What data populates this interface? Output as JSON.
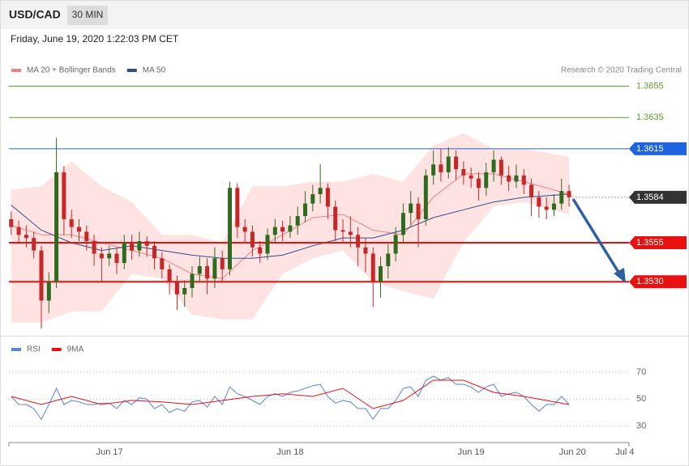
{
  "header": {
    "symbol": "USD/CAD",
    "interval": "30 MIN",
    "datetime": "Friday, June 19, 2020 1:22:03 PM CET"
  },
  "chart_data": [
    {
      "type": "candlestick",
      "note": "Research © 2020 Trading Central",
      "xlim": [
        -0.6,
        163.9
      ],
      "ylim": [
        1.3495,
        1.3662
      ],
      "up_color": "#2e6b1f",
      "down_color": "#c62828",
      "candles": {
        "x": [
          0,
          2,
          4,
          6,
          8,
          10,
          12,
          14,
          16,
          18,
          20,
          22,
          24,
          26,
          28,
          30,
          32,
          34,
          36,
          38,
          40,
          42,
          44,
          46,
          48,
          50,
          52,
          54,
          56,
          58,
          60,
          62,
          64,
          66,
          68,
          70,
          72,
          74,
          76,
          78,
          80,
          82,
          84,
          86,
          88,
          90,
          92,
          94,
          96,
          98,
          100,
          102,
          104,
          106,
          108,
          110,
          112,
          114,
          116,
          118,
          120,
          122,
          124,
          126,
          128,
          130,
          132,
          134,
          136,
          138,
          140,
          142,
          144,
          146,
          148
        ],
        "open": [
          1.357,
          1.3565,
          1.356,
          1.3558,
          1.355,
          1.3518,
          1.353,
          1.36,
          1.357,
          1.3565,
          1.3562,
          1.3556,
          1.3548,
          1.3545,
          1.3548,
          1.3542,
          1.3555,
          1.355,
          1.3556,
          1.3553,
          1.3545,
          1.3538,
          1.353,
          1.3522,
          1.3526,
          1.3535,
          1.354,
          1.3532,
          1.3545,
          1.3538,
          1.359,
          1.3565,
          1.3562,
          1.3552,
          1.3548,
          1.356,
          1.3565,
          1.3562,
          1.3566,
          1.3572,
          1.358,
          1.3586,
          1.359,
          1.3578,
          1.3563,
          1.3562,
          1.356,
          1.3552,
          1.3548,
          1.353,
          1.354,
          1.3548,
          1.356,
          1.3574,
          1.358,
          1.357,
          1.3598,
          1.3605,
          1.36,
          1.361,
          1.3602,
          1.3598,
          1.3596,
          1.359,
          1.36,
          1.3608,
          1.3598,
          1.3594,
          1.3598,
          1.3592,
          1.3584,
          1.3578,
          1.3576,
          1.358,
          1.3588
        ],
        "high": [
          1.3575,
          1.3569,
          1.3566,
          1.3562,
          1.3553,
          1.3536,
          1.3622,
          1.3604,
          1.3576,
          1.357,
          1.3566,
          1.356,
          1.3552,
          1.3553,
          1.3552,
          1.356,
          1.356,
          1.3562,
          1.3559,
          1.3556,
          1.3549,
          1.3541,
          1.3534,
          1.3531,
          1.354,
          1.3546,
          1.3545,
          1.3552,
          1.355,
          1.3594,
          1.3593,
          1.357,
          1.3566,
          1.3556,
          1.3564,
          1.357,
          1.3569,
          1.3572,
          1.3578,
          1.3588,
          1.3592,
          1.3605,
          1.3593,
          1.3582,
          1.357,
          1.3572,
          1.3565,
          1.3558,
          1.3552,
          1.3546,
          1.3554,
          1.3565,
          1.358,
          1.3588,
          1.3584,
          1.3602,
          1.3614,
          1.3615,
          1.3616,
          1.3614,
          1.3607,
          1.3603,
          1.36,
          1.3606,
          1.3614,
          1.361,
          1.3604,
          1.3605,
          1.3602,
          1.3596,
          1.3588,
          1.3584,
          1.3586,
          1.3596,
          1.3592
        ],
        "low": [
          1.356,
          1.3554,
          1.3552,
          1.3545,
          1.35,
          1.351,
          1.3526,
          1.356,
          1.3558,
          1.3556,
          1.355,
          1.354,
          1.353,
          1.354,
          1.3535,
          1.3538,
          1.3544,
          1.3546,
          1.3546,
          1.3538,
          1.3532,
          1.3522,
          1.3512,
          1.3514,
          1.352,
          1.353,
          1.3522,
          1.3526,
          1.353,
          1.3534,
          1.3558,
          1.3555,
          1.3546,
          1.3542,
          1.3544,
          1.3555,
          1.3556,
          1.3558,
          1.356,
          1.3568,
          1.3575,
          1.358,
          1.357,
          1.3556,
          1.3555,
          1.3552,
          1.354,
          1.3536,
          1.3514,
          1.352,
          1.3532,
          1.3543,
          1.3555,
          1.3566,
          1.3552,
          1.3566,
          1.3592,
          1.3594,
          1.3596,
          1.3595,
          1.3592,
          1.359,
          1.3582,
          1.3585,
          1.3594,
          1.3592,
          1.3588,
          1.359,
          1.3586,
          1.3572,
          1.3571,
          1.357,
          1.3572,
          1.3576,
          1.3578
        ],
        "close": [
          1.3565,
          1.356,
          1.3558,
          1.355,
          1.3518,
          1.353,
          1.36,
          1.357,
          1.3565,
          1.3562,
          1.3556,
          1.3548,
          1.3545,
          1.3548,
          1.3542,
          1.3555,
          1.355,
          1.3556,
          1.3553,
          1.3545,
          1.3538,
          1.353,
          1.3522,
          1.3526,
          1.3535,
          1.354,
          1.3532,
          1.3545,
          1.3538,
          1.359,
          1.3565,
          1.3562,
          1.3552,
          1.3548,
          1.356,
          1.3565,
          1.3562,
          1.3566,
          1.3572,
          1.358,
          1.3586,
          1.359,
          1.3578,
          1.3563,
          1.3562,
          1.356,
          1.3552,
          1.3548,
          1.353,
          1.354,
          1.3548,
          1.356,
          1.3574,
          1.358,
          1.357,
          1.3598,
          1.3605,
          1.36,
          1.361,
          1.3602,
          1.3598,
          1.3596,
          1.359,
          1.36,
          1.3608,
          1.3598,
          1.3594,
          1.3598,
          1.3592,
          1.3584,
          1.3578,
          1.3576,
          1.358,
          1.3588,
          1.3584
        ]
      },
      "series": [
        {
          "name": "MA 20 + Bollinger Bands",
          "color": "#f08080",
          "band_color": "#ffe3e3",
          "x": [
            0,
            8,
            16,
            24,
            32,
            40,
            48,
            56,
            64,
            72,
            80,
            88,
            96,
            104,
            112,
            120,
            128,
            136,
            148
          ],
          "values": [
            1.3566,
            1.356,
            1.356,
            1.3555,
            1.355,
            1.3545,
            1.3535,
            1.3532,
            1.355,
            1.356,
            1.3571,
            1.3573,
            1.3563,
            1.356,
            1.3584,
            1.3599,
            1.3599,
            1.3594,
            1.3586
          ],
          "upper": [
            1.3589,
            1.3591,
            1.3607,
            1.3591,
            1.3581,
            1.356,
            1.356,
            1.3555,
            1.3591,
            1.3591,
            1.3594,
            1.3594,
            1.3599,
            1.3594,
            1.3617,
            1.3625,
            1.3615,
            1.3615,
            1.361
          ],
          "lower": [
            1.3504,
            1.3504,
            1.3511,
            1.3511,
            1.3535,
            1.3532,
            1.3509,
            1.3506,
            1.3506,
            1.3535,
            1.3545,
            1.355,
            1.353,
            1.3524,
            1.3519,
            1.3555,
            1.3578,
            1.3581,
            1.3573
          ]
        },
        {
          "name": "MA 50",
          "color": "#2b4f8f",
          "x": [
            0,
            8,
            16,
            24,
            32,
            40,
            48,
            56,
            64,
            72,
            80,
            88,
            96,
            104,
            112,
            120,
            128,
            136,
            148
          ],
          "values": [
            1.3579,
            1.3563,
            1.3555,
            1.355,
            1.3553,
            1.355,
            1.3547,
            1.3545,
            1.3545,
            1.3547,
            1.3553,
            1.3558,
            1.3558,
            1.3563,
            1.3571,
            1.3576,
            1.3581,
            1.3584,
            1.3586
          ]
        }
      ],
      "levels": [
        {
          "value": 1.3655,
          "label": "1.3655",
          "color": "#5aa02c",
          "style": "text",
          "line": "solid"
        },
        {
          "value": 1.3635,
          "label": "1.3635",
          "color": "#5aa02c",
          "style": "text",
          "line": "solid"
        },
        {
          "value": 1.3615,
          "label": "1.3615",
          "color": "#1e63e0",
          "style": "box",
          "line": "solid"
        },
        {
          "value": 1.3584,
          "label": "1.3584",
          "color": "#333333",
          "style": "box",
          "line": "dotted"
        },
        {
          "value": 1.3555,
          "label": "1.3555",
          "color": "#e8110f",
          "style": "box",
          "line": "thick"
        },
        {
          "value": 1.353,
          "label": "1.3530",
          "color": "#e8110f",
          "style": "box",
          "line": "thick"
        }
      ]
    },
    {
      "type": "line",
      "xlim": [
        -0.6,
        163.9
      ],
      "ylim": [
        22,
        82
      ],
      "yticks": [
        30,
        50,
        70
      ],
      "xticks": [
        {
          "value": 26.1,
          "label": "Jun 17"
        },
        {
          "value": 74.0,
          "label": "Jun 18"
        },
        {
          "value": 122.0,
          "label": "Jun 19"
        },
        {
          "value": 148.9,
          "label": "Jun 20"
        },
        {
          "value": 162.8,
          "label": "Jul 4"
        }
      ],
      "series": [
        {
          "name": "RSI",
          "color": "#5b82d9",
          "x": [
            0,
            2,
            4,
            6,
            8,
            10,
            12,
            14,
            16,
            18,
            20,
            22,
            24,
            26,
            28,
            30,
            32,
            34,
            36,
            38,
            40,
            42,
            44,
            46,
            48,
            50,
            52,
            54,
            56,
            58,
            60,
            62,
            64,
            66,
            68,
            70,
            72,
            74,
            76,
            78,
            80,
            82,
            84,
            86,
            88,
            90,
            92,
            94,
            96,
            98,
            100,
            102,
            104,
            106,
            108,
            110,
            112,
            114,
            116,
            118,
            120,
            122,
            124,
            126,
            128,
            130,
            132,
            134,
            136,
            138,
            140,
            142,
            144,
            146,
            148
          ],
          "values": [
            52,
            46,
            46,
            43,
            35,
            46,
            58,
            46,
            49,
            48,
            46,
            46,
            47,
            47,
            43,
            49,
            46,
            51,
            50,
            43,
            46,
            40,
            43,
            41,
            48,
            49,
            44,
            52,
            46,
            59,
            54,
            52,
            49,
            46,
            52,
            54,
            52,
            55,
            56,
            58,
            60,
            61,
            52,
            47,
            49,
            48,
            43,
            43,
            35,
            43,
            43,
            49,
            58,
            59,
            52,
            64,
            67,
            64,
            66,
            61,
            61,
            59,
            55,
            59,
            61,
            52,
            54,
            55,
            52,
            46,
            41,
            46,
            46,
            52,
            46
          ]
        },
        {
          "name": "9MA",
          "color": "#e8110f",
          "x": [
            0,
            8,
            16,
            24,
            32,
            40,
            48,
            56,
            64,
            72,
            80,
            88,
            96,
            104,
            112,
            120,
            128,
            136,
            148
          ],
          "values": [
            52,
            46,
            52,
            46,
            49,
            48,
            46,
            49,
            52,
            54,
            52,
            58,
            43,
            49,
            64,
            64,
            55,
            52,
            46
          ]
        }
      ]
    }
  ]
}
